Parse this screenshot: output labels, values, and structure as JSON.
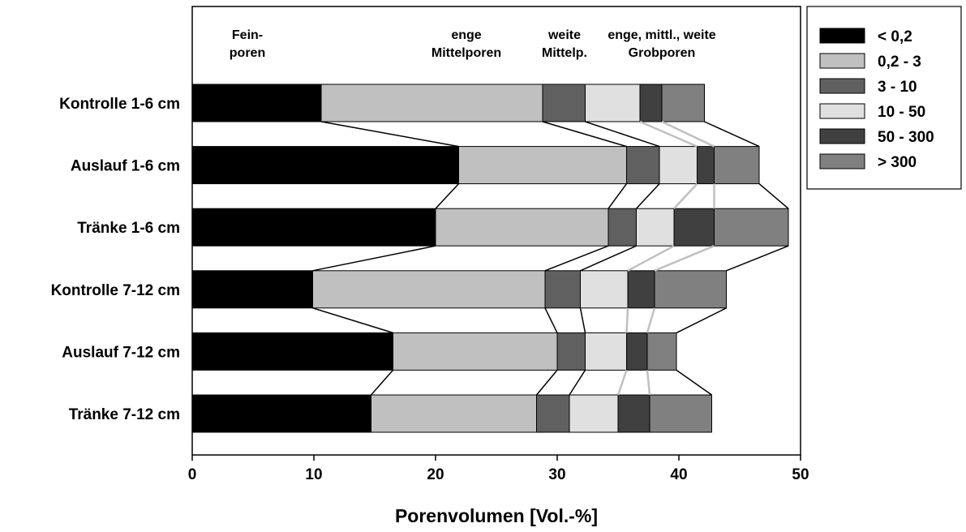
{
  "chart_data": {
    "type": "stacked-bar-horizontal",
    "xlabel": "Porenvolumen [Vol.-%]",
    "categories": [
      "Kontrolle 1-6 cm",
      "Auslauf 1-6 cm",
      "Tränke 1-6 cm",
      "Kontrolle 7-12 cm",
      "Auslauf 7-12 cm",
      "Tränke 7-12 cm"
    ],
    "series": [
      {
        "name": "< 0,2",
        "color": "#000000",
        "values": [
          10.6,
          21.9,
          20.0,
          9.9,
          16.5,
          14.7
        ]
      },
      {
        "name": "0,2 - 3",
        "color": "#c0c0c0",
        "values": [
          18.2,
          13.8,
          14.2,
          19.1,
          13.5,
          13.6
        ]
      },
      {
        "name": "3 - 10",
        "color": "#606060",
        "values": [
          3.5,
          2.7,
          2.3,
          2.9,
          2.3,
          2.7
        ]
      },
      {
        "name": "10 - 50",
        "color": "#e0e0e0",
        "values": [
          4.5,
          3.1,
          3.1,
          3.9,
          3.4,
          4.0
        ]
      },
      {
        "name": "50 - 300",
        "color": "#404040",
        "values": [
          1.8,
          1.4,
          3.3,
          2.2,
          1.7,
          2.6
        ]
      },
      {
        "name": "> 300",
        "color": "#808080",
        "values": [
          3.5,
          3.7,
          6.1,
          5.9,
          2.4,
          5.1
        ]
      }
    ],
    "annotations": [
      [
        "Fein-",
        "poren"
      ],
      [
        "enge",
        "Mittelporen"
      ],
      [
        "weite",
        "Mittelp."
      ],
      [
        "enge, mittl., weite",
        "Grobporen"
      ]
    ],
    "xlim": [
      0,
      50
    ],
    "xticks": [
      0,
      10,
      20,
      30,
      40,
      50
    ]
  }
}
